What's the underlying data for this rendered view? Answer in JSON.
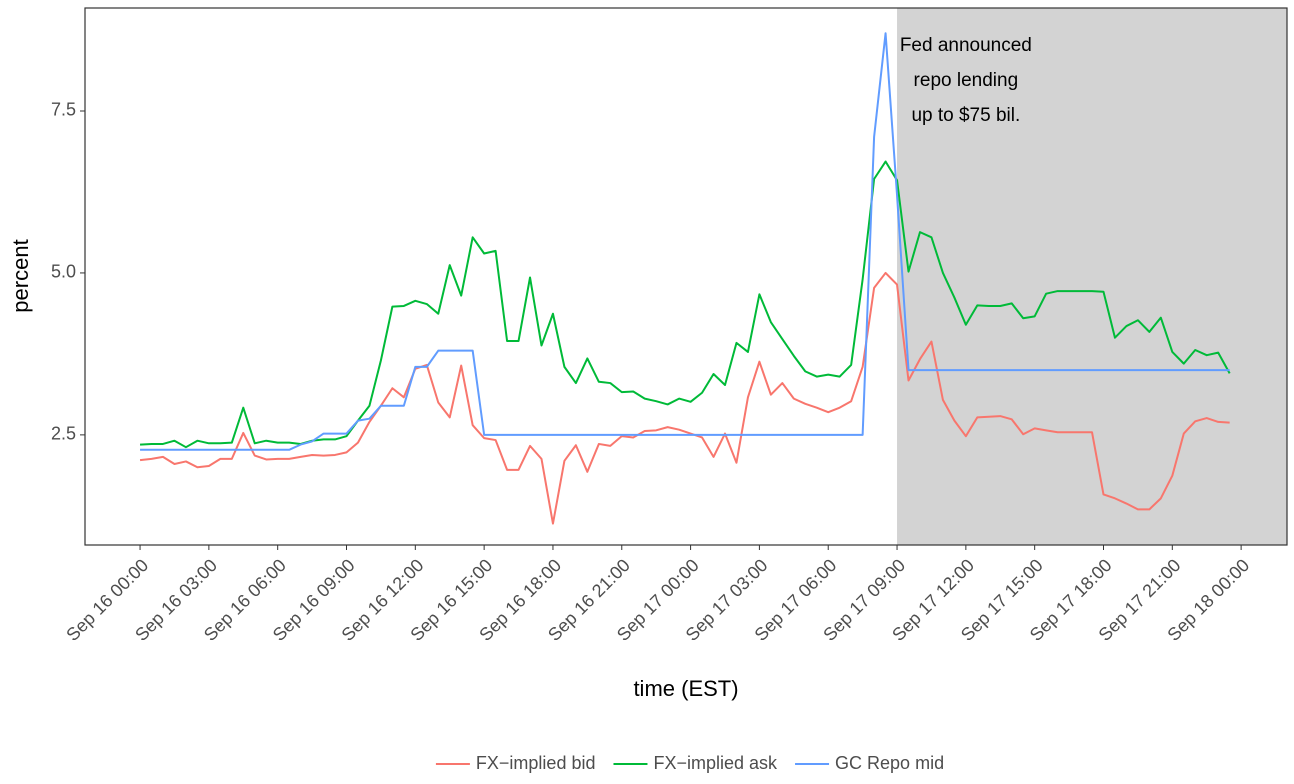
{
  "chart_data": {
    "type": "line",
    "xlabel": "time (EST)",
    "ylabel": "percent",
    "x": [
      0,
      0.5,
      1,
      1.5,
      2,
      2.5,
      3,
      3.5,
      4,
      4.5,
      5,
      5.5,
      6,
      6.5,
      7,
      7.5,
      8,
      8.5,
      9,
      9.5,
      10,
      10.5,
      11,
      11.5,
      12,
      12.5,
      13,
      13.5,
      14,
      14.5,
      15,
      15.5,
      16,
      16.5,
      17,
      17.5,
      18,
      18.5,
      19,
      19.5,
      20,
      20.5,
      21,
      21.5,
      22,
      22.5,
      23,
      23.5,
      24,
      24.5,
      25,
      25.5,
      26,
      26.5,
      27,
      27.5,
      28,
      28.5,
      29,
      29.5,
      30,
      30.5,
      31,
      31.5,
      32,
      32.5,
      33,
      33.5,
      34,
      34.5,
      35,
      35.5,
      36,
      36.5,
      37,
      37.5,
      38,
      38.5,
      39,
      39.5,
      40,
      40.5,
      41,
      41.5,
      42,
      42.5,
      43,
      43.5,
      44,
      44.5,
      45,
      45.5,
      46,
      46.5,
      47,
      47.5
    ],
    "series": [
      {
        "name": "FX−implied bid",
        "color": "#f8766d",
        "values": [
          2.11,
          2.13,
          2.16,
          2.05,
          2.09,
          2.0,
          2.02,
          2.13,
          2.13,
          2.53,
          2.18,
          2.12,
          2.13,
          2.13,
          2.16,
          2.19,
          2.18,
          2.19,
          2.23,
          2.38,
          2.7,
          2.95,
          3.22,
          3.08,
          3.52,
          3.58,
          3.0,
          2.77,
          3.57,
          2.65,
          2.45,
          2.42,
          1.96,
          1.96,
          2.33,
          2.13,
          1.13,
          2.1,
          2.34,
          1.93,
          2.36,
          2.33,
          2.48,
          2.46,
          2.56,
          2.57,
          2.62,
          2.58,
          2.52,
          2.46,
          2.16,
          2.52,
          2.07,
          3.08,
          3.63,
          3.12,
          3.3,
          3.06,
          2.98,
          2.92,
          2.85,
          2.92,
          3.02,
          3.55,
          4.77,
          5.0,
          4.82,
          3.34,
          3.67,
          3.94,
          3.04,
          2.72,
          2.48,
          2.77,
          2.78,
          2.79,
          2.74,
          2.51,
          2.6,
          2.57,
          2.54,
          2.54,
          2.54,
          2.54,
          1.58,
          1.52,
          1.44,
          1.35,
          1.35,
          1.52,
          1.87,
          2.52,
          2.71,
          2.76,
          2.7,
          2.69
        ]
      },
      {
        "name": "FX−implied ask",
        "color": "#00ba38",
        "values": [
          2.35,
          2.36,
          2.36,
          2.41,
          2.31,
          2.41,
          2.37,
          2.37,
          2.38,
          2.92,
          2.37,
          2.41,
          2.38,
          2.38,
          2.36,
          2.41,
          2.43,
          2.43,
          2.48,
          2.72,
          2.95,
          3.65,
          4.48,
          4.49,
          4.57,
          4.52,
          4.37,
          5.12,
          4.65,
          5.55,
          5.3,
          5.34,
          3.95,
          3.95,
          4.93,
          3.88,
          4.37,
          3.55,
          3.3,
          3.68,
          3.32,
          3.3,
          3.16,
          3.17,
          3.06,
          3.02,
          2.97,
          3.06,
          3.01,
          3.15,
          3.44,
          3.27,
          3.92,
          3.78,
          4.67,
          4.24,
          3.98,
          3.72,
          3.48,
          3.4,
          3.43,
          3.4,
          3.58,
          4.9,
          6.45,
          6.72,
          6.43,
          5.02,
          5.63,
          5.55,
          5.0,
          4.62,
          4.2,
          4.5,
          4.49,
          4.49,
          4.53,
          4.3,
          4.33,
          4.68,
          4.72,
          4.72,
          4.72,
          4.72,
          4.71,
          4.0,
          4.18,
          4.27,
          4.09,
          4.31,
          3.78,
          3.6,
          3.81,
          3.73,
          3.77,
          3.45
        ]
      },
      {
        "name": "GC Repo mid",
        "color": "#619cff",
        "values": [
          2.27,
          2.27,
          2.27,
          2.27,
          2.27,
          2.27,
          2.27,
          2.27,
          2.27,
          2.27,
          2.27,
          2.27,
          2.27,
          2.27,
          2.35,
          2.4,
          2.52,
          2.52,
          2.52,
          2.72,
          2.75,
          2.95,
          2.95,
          2.95,
          3.55,
          3.55,
          3.8,
          3.8,
          3.8,
          3.8,
          2.5,
          2.5,
          2.5,
          2.5,
          2.5,
          2.5,
          2.5,
          2.5,
          2.5,
          2.5,
          2.5,
          2.5,
          2.5,
          2.5,
          2.5,
          2.5,
          2.5,
          2.5,
          2.5,
          2.5,
          2.5,
          2.5,
          2.5,
          2.5,
          2.5,
          2.5,
          2.5,
          2.5,
          2.5,
          2.5,
          2.5,
          2.5,
          2.5,
          2.5,
          7.1,
          8.7,
          6.2,
          3.5,
          3.5,
          3.5,
          3.5,
          3.5,
          3.5,
          3.5,
          3.5,
          3.5,
          3.5,
          3.5,
          3.5,
          3.5,
          3.5,
          3.5,
          3.5,
          3.5,
          3.5,
          3.5,
          3.5,
          3.5,
          3.5,
          3.5,
          3.5,
          3.5,
          3.5,
          3.5,
          3.5,
          3.5
        ]
      }
    ],
    "xlim": [
      -2.4,
      50
    ],
    "xticks": [
      {
        "value": 0,
        "label": "Sep 16 00:00"
      },
      {
        "value": 3,
        "label": "Sep 16 03:00"
      },
      {
        "value": 6,
        "label": "Sep 16 06:00"
      },
      {
        "value": 9,
        "label": "Sep 16 09:00"
      },
      {
        "value": 12,
        "label": "Sep 16 12:00"
      },
      {
        "value": 15,
        "label": "Sep 16 15:00"
      },
      {
        "value": 18,
        "label": "Sep 16 18:00"
      },
      {
        "value": 21,
        "label": "Sep 16 21:00"
      },
      {
        "value": 24,
        "label": "Sep 17 00:00"
      },
      {
        "value": 27,
        "label": "Sep 17 03:00"
      },
      {
        "value": 30,
        "label": "Sep 17 06:00"
      },
      {
        "value": 33,
        "label": "Sep 17 09:00"
      },
      {
        "value": 36,
        "label": "Sep 17 12:00"
      },
      {
        "value": 39,
        "label": "Sep 17 15:00"
      },
      {
        "value": 42,
        "label": "Sep 17 18:00"
      },
      {
        "value": 45,
        "label": "Sep 17 21:00"
      },
      {
        "value": 48,
        "label": "Sep 18 00:00"
      }
    ],
    "ylim": [
      0.8,
      9.09
    ],
    "yticks": [
      2.5,
      {
        "value": 5,
        "label": "5.0"
      },
      7.5
    ],
    "grid": false,
    "legend": "bottom",
    "shaded_region": {
      "xmin": 33,
      "xmax": 50,
      "color": "#d3d3d3"
    },
    "annotation": {
      "lines": [
        "Fed announced",
        "repo lending",
        "up to $75 bil."
      ],
      "x": 36,
      "y": 7.96
    }
  }
}
